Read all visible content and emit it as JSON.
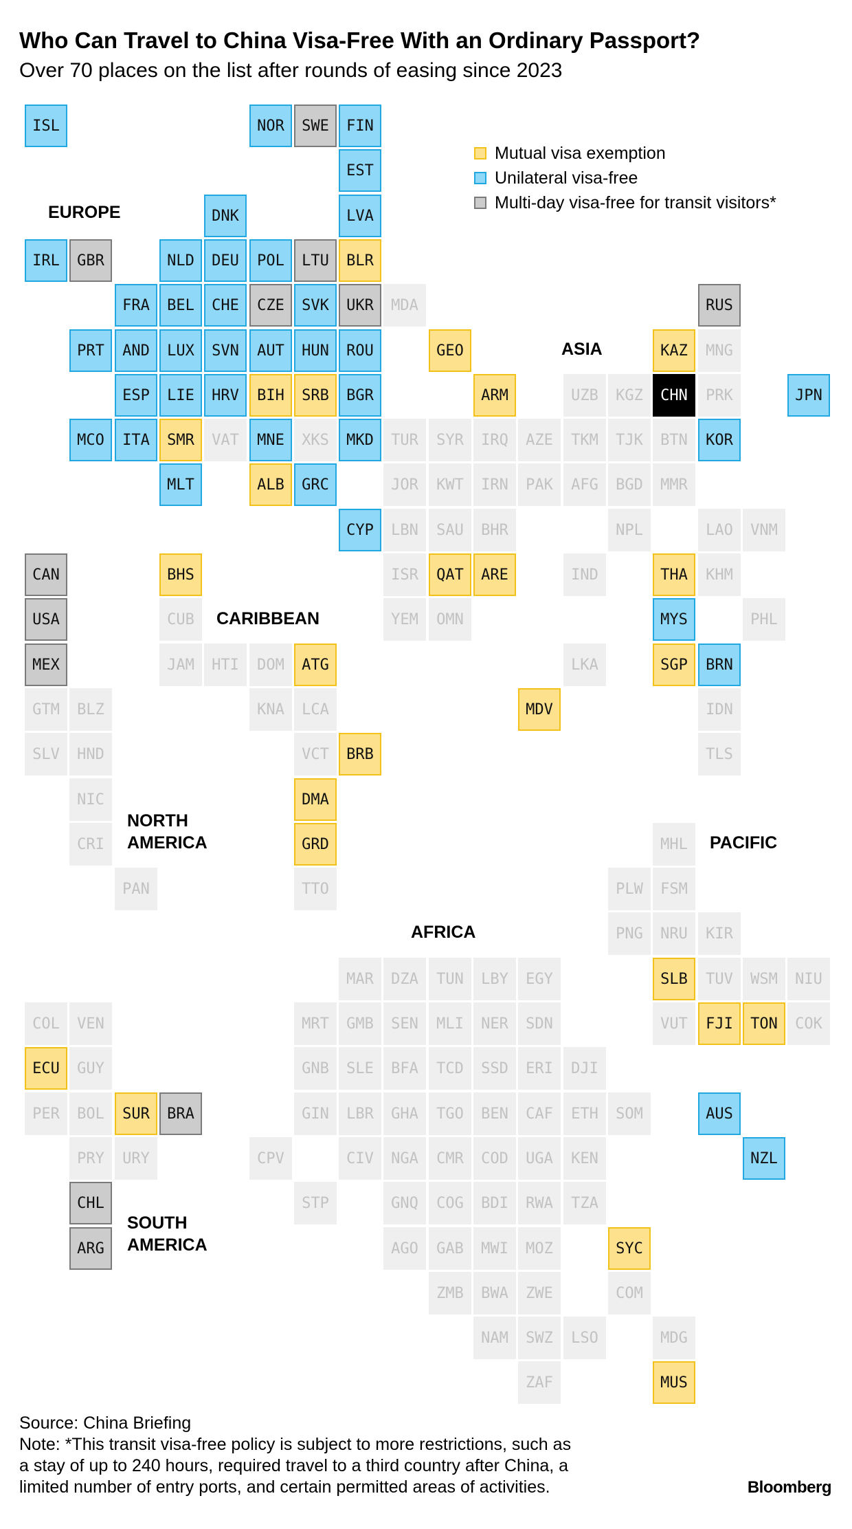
{
  "title": "Who Can Travel to China Visa-Free With an Ordinary Passport?",
  "subtitle": "Over 70 places on the list after rounds of easing since 2023",
  "colors": {
    "mutual": "#fde18d",
    "unilateral": "#8fd8f8",
    "transit": "#cccccc",
    "none": "#efefef",
    "home": "#000000"
  },
  "legend": [
    {
      "status": "mutual",
      "label": "Mutual visa exemption"
    },
    {
      "status": "unilateral",
      "label": "Unilateral visa-free"
    },
    {
      "status": "transit",
      "label": "Multi-day visa-free for transit visitors*"
    }
  ],
  "regions": {
    "europe": "EUROPE",
    "asia": "ASIA",
    "caribbean": "CARIBBEAN",
    "north_america": "NORTH\nAMERICA",
    "pacific": "PACIFIC",
    "africa": "AFRICA",
    "south_america": "SOUTH\nAMERICA"
  },
  "countries": [
    {
      "code": "ISL",
      "col": 0,
      "row": 0,
      "status": "unilateral"
    },
    {
      "code": "NOR",
      "col": 5,
      "row": 0,
      "status": "unilateral"
    },
    {
      "code": "SWE",
      "col": 6,
      "row": 0,
      "status": "transit"
    },
    {
      "code": "FIN",
      "col": 7,
      "row": 0,
      "status": "unilateral"
    },
    {
      "code": "EST",
      "col": 7,
      "row": 1,
      "status": "unilateral"
    },
    {
      "code": "DNK",
      "col": 4,
      "row": 2,
      "status": "unilateral"
    },
    {
      "code": "LVA",
      "col": 7,
      "row": 2,
      "status": "unilateral"
    },
    {
      "code": "IRL",
      "col": 0,
      "row": 3,
      "status": "unilateral"
    },
    {
      "code": "GBR",
      "col": 1,
      "row": 3,
      "status": "transit"
    },
    {
      "code": "NLD",
      "col": 3,
      "row": 3,
      "status": "unilateral"
    },
    {
      "code": "DEU",
      "col": 4,
      "row": 3,
      "status": "unilateral"
    },
    {
      "code": "POL",
      "col": 5,
      "row": 3,
      "status": "unilateral"
    },
    {
      "code": "LTU",
      "col": 6,
      "row": 3,
      "status": "transit"
    },
    {
      "code": "BLR",
      "col": 7,
      "row": 3,
      "status": "mutual"
    },
    {
      "code": "FRA",
      "col": 2,
      "row": 4,
      "status": "unilateral"
    },
    {
      "code": "BEL",
      "col": 3,
      "row": 4,
      "status": "unilateral"
    },
    {
      "code": "CHE",
      "col": 4,
      "row": 4,
      "status": "unilateral"
    },
    {
      "code": "CZE",
      "col": 5,
      "row": 4,
      "status": "transit"
    },
    {
      "code": "SVK",
      "col": 6,
      "row": 4,
      "status": "unilateral"
    },
    {
      "code": "UKR",
      "col": 7,
      "row": 4,
      "status": "transit"
    },
    {
      "code": "MDA",
      "col": 8,
      "row": 4,
      "status": "none"
    },
    {
      "code": "RUS",
      "col": 15,
      "row": 4,
      "status": "transit"
    },
    {
      "code": "PRT",
      "col": 1,
      "row": 5,
      "status": "unilateral"
    },
    {
      "code": "AND",
      "col": 2,
      "row": 5,
      "status": "unilateral"
    },
    {
      "code": "LUX",
      "col": 3,
      "row": 5,
      "status": "unilateral"
    },
    {
      "code": "SVN",
      "col": 4,
      "row": 5,
      "status": "unilateral"
    },
    {
      "code": "AUT",
      "col": 5,
      "row": 5,
      "status": "unilateral"
    },
    {
      "code": "HUN",
      "col": 6,
      "row": 5,
      "status": "unilateral"
    },
    {
      "code": "ROU",
      "col": 7,
      "row": 5,
      "status": "unilateral"
    },
    {
      "code": "GEO",
      "col": 9,
      "row": 5,
      "status": "mutual"
    },
    {
      "code": "KAZ",
      "col": 14,
      "row": 5,
      "status": "mutual"
    },
    {
      "code": "MNG",
      "col": 15,
      "row": 5,
      "status": "none"
    },
    {
      "code": "ESP",
      "col": 2,
      "row": 6,
      "status": "unilateral"
    },
    {
      "code": "LIE",
      "col": 3,
      "row": 6,
      "status": "unilateral"
    },
    {
      "code": "HRV",
      "col": 4,
      "row": 6,
      "status": "unilateral"
    },
    {
      "code": "BIH",
      "col": 5,
      "row": 6,
      "status": "mutual"
    },
    {
      "code": "SRB",
      "col": 6,
      "row": 6,
      "status": "mutual"
    },
    {
      "code": "BGR",
      "col": 7,
      "row": 6,
      "status": "unilateral"
    },
    {
      "code": "ARM",
      "col": 10,
      "row": 6,
      "status": "mutual"
    },
    {
      "code": "UZB",
      "col": 12,
      "row": 6,
      "status": "none"
    },
    {
      "code": "KGZ",
      "col": 13,
      "row": 6,
      "status": "none"
    },
    {
      "code": "CHN",
      "col": 14,
      "row": 6,
      "status": "home"
    },
    {
      "code": "PRK",
      "col": 15,
      "row": 6,
      "status": "none"
    },
    {
      "code": "JPN",
      "col": 17,
      "row": 6,
      "status": "unilateral"
    },
    {
      "code": "MCO",
      "col": 1,
      "row": 7,
      "status": "unilateral"
    },
    {
      "code": "ITA",
      "col": 2,
      "row": 7,
      "status": "unilateral"
    },
    {
      "code": "SMR",
      "col": 3,
      "row": 7,
      "status": "mutual"
    },
    {
      "code": "VAT",
      "col": 4,
      "row": 7,
      "status": "none"
    },
    {
      "code": "MNE",
      "col": 5,
      "row": 7,
      "status": "unilateral"
    },
    {
      "code": "XKS",
      "col": 6,
      "row": 7,
      "status": "none"
    },
    {
      "code": "MKD",
      "col": 7,
      "row": 7,
      "status": "unilateral"
    },
    {
      "code": "TUR",
      "col": 8,
      "row": 7,
      "status": "none"
    },
    {
      "code": "SYR",
      "col": 9,
      "row": 7,
      "status": "none"
    },
    {
      "code": "IRQ",
      "col": 10,
      "row": 7,
      "status": "none"
    },
    {
      "code": "AZE",
      "col": 11,
      "row": 7,
      "status": "none"
    },
    {
      "code": "TKM",
      "col": 12,
      "row": 7,
      "status": "none"
    },
    {
      "code": "TJK",
      "col": 13,
      "row": 7,
      "status": "none"
    },
    {
      "code": "BTN",
      "col": 14,
      "row": 7,
      "status": "none"
    },
    {
      "code": "KOR",
      "col": 15,
      "row": 7,
      "status": "unilateral"
    },
    {
      "code": "MLT",
      "col": 3,
      "row": 8,
      "status": "unilateral"
    },
    {
      "code": "ALB",
      "col": 5,
      "row": 8,
      "status": "mutual"
    },
    {
      "code": "GRC",
      "col": 6,
      "row": 8,
      "status": "unilateral"
    },
    {
      "code": "JOR",
      "col": 8,
      "row": 8,
      "status": "none"
    },
    {
      "code": "KWT",
      "col": 9,
      "row": 8,
      "status": "none"
    },
    {
      "code": "IRN",
      "col": 10,
      "row": 8,
      "status": "none"
    },
    {
      "code": "PAK",
      "col": 11,
      "row": 8,
      "status": "none"
    },
    {
      "code": "AFG",
      "col": 12,
      "row": 8,
      "status": "none"
    },
    {
      "code": "BGD",
      "col": 13,
      "row": 8,
      "status": "none"
    },
    {
      "code": "MMR",
      "col": 14,
      "row": 8,
      "status": "none"
    },
    {
      "code": "CYP",
      "col": 7,
      "row": 9,
      "status": "unilateral"
    },
    {
      "code": "LBN",
      "col": 8,
      "row": 9,
      "status": "none"
    },
    {
      "code": "SAU",
      "col": 9,
      "row": 9,
      "status": "none"
    },
    {
      "code": "BHR",
      "col": 10,
      "row": 9,
      "status": "none"
    },
    {
      "code": "NPL",
      "col": 13,
      "row": 9,
      "status": "none"
    },
    {
      "code": "LAO",
      "col": 15,
      "row": 9,
      "status": "none"
    },
    {
      "code": "VNM",
      "col": 16,
      "row": 9,
      "status": "none"
    },
    {
      "code": "CAN",
      "col": 0,
      "row": 10,
      "status": "transit"
    },
    {
      "code": "BHS",
      "col": 3,
      "row": 10,
      "status": "mutual"
    },
    {
      "code": "ISR",
      "col": 8,
      "row": 10,
      "status": "none"
    },
    {
      "code": "QAT",
      "col": 9,
      "row": 10,
      "status": "mutual"
    },
    {
      "code": "ARE",
      "col": 10,
      "row": 10,
      "status": "mutual"
    },
    {
      "code": "IND",
      "col": 12,
      "row": 10,
      "status": "none"
    },
    {
      "code": "THA",
      "col": 14,
      "row": 10,
      "status": "mutual"
    },
    {
      "code": "KHM",
      "col": 15,
      "row": 10,
      "status": "none"
    },
    {
      "code": "USA",
      "col": 0,
      "row": 11,
      "status": "transit"
    },
    {
      "code": "CUB",
      "col": 3,
      "row": 11,
      "status": "none"
    },
    {
      "code": "YEM",
      "col": 8,
      "row": 11,
      "status": "none"
    },
    {
      "code": "OMN",
      "col": 9,
      "row": 11,
      "status": "none"
    },
    {
      "code": "MYS",
      "col": 14,
      "row": 11,
      "status": "unilateral"
    },
    {
      "code": "PHL",
      "col": 16,
      "row": 11,
      "status": "none"
    },
    {
      "code": "MEX",
      "col": 0,
      "row": 12,
      "status": "transit"
    },
    {
      "code": "JAM",
      "col": 3,
      "row": 12,
      "status": "none"
    },
    {
      "code": "HTI",
      "col": 4,
      "row": 12,
      "status": "none"
    },
    {
      "code": "DOM",
      "col": 5,
      "row": 12,
      "status": "none"
    },
    {
      "code": "ATG",
      "col": 6,
      "row": 12,
      "status": "mutual"
    },
    {
      "code": "LKA",
      "col": 12,
      "row": 12,
      "status": "none"
    },
    {
      "code": "SGP",
      "col": 14,
      "row": 12,
      "status": "mutual"
    },
    {
      "code": "BRN",
      "col": 15,
      "row": 12,
      "status": "unilateral"
    },
    {
      "code": "GTM",
      "col": 0,
      "row": 13,
      "status": "none"
    },
    {
      "code": "BLZ",
      "col": 1,
      "row": 13,
      "status": "none"
    },
    {
      "code": "KNA",
      "col": 5,
      "row": 13,
      "status": "none"
    },
    {
      "code": "LCA",
      "col": 6,
      "row": 13,
      "status": "none"
    },
    {
      "code": "MDV",
      "col": 11,
      "row": 13,
      "status": "mutual"
    },
    {
      "code": "IDN",
      "col": 15,
      "row": 13,
      "status": "none"
    },
    {
      "code": "SLV",
      "col": 0,
      "row": 14,
      "status": "none"
    },
    {
      "code": "HND",
      "col": 1,
      "row": 14,
      "status": "none"
    },
    {
      "code": "VCT",
      "col": 6,
      "row": 14,
      "status": "none"
    },
    {
      "code": "BRB",
      "col": 7,
      "row": 14,
      "status": "mutual"
    },
    {
      "code": "TLS",
      "col": 15,
      "row": 14,
      "status": "none"
    },
    {
      "code": "NIC",
      "col": 1,
      "row": 15,
      "status": "none"
    },
    {
      "code": "DMA",
      "col": 6,
      "row": 15,
      "status": "mutual"
    },
    {
      "code": "CRI",
      "col": 1,
      "row": 16,
      "status": "none"
    },
    {
      "code": "GRD",
      "col": 6,
      "row": 16,
      "status": "mutual"
    },
    {
      "code": "MHL",
      "col": 14,
      "row": 16,
      "status": "none"
    },
    {
      "code": "PAN",
      "col": 2,
      "row": 17,
      "status": "none"
    },
    {
      "code": "TTO",
      "col": 6,
      "row": 17,
      "status": "none"
    },
    {
      "code": "PLW",
      "col": 13,
      "row": 17,
      "status": "none"
    },
    {
      "code": "FSM",
      "col": 14,
      "row": 17,
      "status": "none"
    },
    {
      "code": "PNG",
      "col": 13,
      "row": 18,
      "status": "none"
    },
    {
      "code": "NRU",
      "col": 14,
      "row": 18,
      "status": "none"
    },
    {
      "code": "KIR",
      "col": 15,
      "row": 18,
      "status": "none"
    },
    {
      "code": "MAR",
      "col": 7,
      "row": 19,
      "status": "none"
    },
    {
      "code": "DZA",
      "col": 8,
      "row": 19,
      "status": "none"
    },
    {
      "code": "TUN",
      "col": 9,
      "row": 19,
      "status": "none"
    },
    {
      "code": "LBY",
      "col": 10,
      "row": 19,
      "status": "none"
    },
    {
      "code": "EGY",
      "col": 11,
      "row": 19,
      "status": "none"
    },
    {
      "code": "SLB",
      "col": 14,
      "row": 19,
      "status": "mutual"
    },
    {
      "code": "TUV",
      "col": 15,
      "row": 19,
      "status": "none"
    },
    {
      "code": "WSM",
      "col": 16,
      "row": 19,
      "status": "none"
    },
    {
      "code": "NIU",
      "col": 17,
      "row": 19,
      "status": "none"
    },
    {
      "code": "COL",
      "col": 0,
      "row": 20,
      "status": "none"
    },
    {
      "code": "VEN",
      "col": 1,
      "row": 20,
      "status": "none"
    },
    {
      "code": "MRT",
      "col": 6,
      "row": 20,
      "status": "none"
    },
    {
      "code": "GMB",
      "col": 7,
      "row": 20,
      "status": "none"
    },
    {
      "code": "SEN",
      "col": 8,
      "row": 20,
      "status": "none"
    },
    {
      "code": "MLI",
      "col": 9,
      "row": 20,
      "status": "none"
    },
    {
      "code": "NER",
      "col": 10,
      "row": 20,
      "status": "none"
    },
    {
      "code": "SDN",
      "col": 11,
      "row": 20,
      "status": "none"
    },
    {
      "code": "VUT",
      "col": 14,
      "row": 20,
      "status": "none"
    },
    {
      "code": "FJI",
      "col": 15,
      "row": 20,
      "status": "mutual"
    },
    {
      "code": "TON",
      "col": 16,
      "row": 20,
      "status": "mutual"
    },
    {
      "code": "COK",
      "col": 17,
      "row": 20,
      "status": "none"
    },
    {
      "code": "ECU",
      "col": 0,
      "row": 21,
      "status": "mutual"
    },
    {
      "code": "GUY",
      "col": 1,
      "row": 21,
      "status": "none"
    },
    {
      "code": "GNB",
      "col": 6,
      "row": 21,
      "status": "none"
    },
    {
      "code": "SLE",
      "col": 7,
      "row": 21,
      "status": "none"
    },
    {
      "code": "BFA",
      "col": 8,
      "row": 21,
      "status": "none"
    },
    {
      "code": "TCD",
      "col": 9,
      "row": 21,
      "status": "none"
    },
    {
      "code": "SSD",
      "col": 10,
      "row": 21,
      "status": "none"
    },
    {
      "code": "ERI",
      "col": 11,
      "row": 21,
      "status": "none"
    },
    {
      "code": "DJI",
      "col": 12,
      "row": 21,
      "status": "none"
    },
    {
      "code": "PER",
      "col": 0,
      "row": 22,
      "status": "none"
    },
    {
      "code": "BOL",
      "col": 1,
      "row": 22,
      "status": "none"
    },
    {
      "code": "SUR",
      "col": 2,
      "row": 22,
      "status": "mutual"
    },
    {
      "code": "BRA",
      "col": 3,
      "row": 22,
      "status": "transit"
    },
    {
      "code": "GIN",
      "col": 6,
      "row": 22,
      "status": "none"
    },
    {
      "code": "LBR",
      "col": 7,
      "row": 22,
      "status": "none"
    },
    {
      "code": "GHA",
      "col": 8,
      "row": 22,
      "status": "none"
    },
    {
      "code": "TGO",
      "col": 9,
      "row": 22,
      "status": "none"
    },
    {
      "code": "BEN",
      "col": 10,
      "row": 22,
      "status": "none"
    },
    {
      "code": "CAF",
      "col": 11,
      "row": 22,
      "status": "none"
    },
    {
      "code": "ETH",
      "col": 12,
      "row": 22,
      "status": "none"
    },
    {
      "code": "SOM",
      "col": 13,
      "row": 22,
      "status": "none"
    },
    {
      "code": "AUS",
      "col": 15,
      "row": 22,
      "status": "unilateral"
    },
    {
      "code": "PRY",
      "col": 1,
      "row": 23,
      "status": "none"
    },
    {
      "code": "URY",
      "col": 2,
      "row": 23,
      "status": "none"
    },
    {
      "code": "CPV",
      "col": 5,
      "row": 23,
      "status": "none"
    },
    {
      "code": "CIV",
      "col": 7,
      "row": 23,
      "status": "none"
    },
    {
      "code": "NGA",
      "col": 8,
      "row": 23,
      "status": "none"
    },
    {
      "code": "CMR",
      "col": 9,
      "row": 23,
      "status": "none"
    },
    {
      "code": "COD",
      "col": 10,
      "row": 23,
      "status": "none"
    },
    {
      "code": "UGA",
      "col": 11,
      "row": 23,
      "status": "none"
    },
    {
      "code": "KEN",
      "col": 12,
      "row": 23,
      "status": "none"
    },
    {
      "code": "NZL",
      "col": 16,
      "row": 23,
      "status": "unilateral"
    },
    {
      "code": "CHL",
      "col": 1,
      "row": 24,
      "status": "transit"
    },
    {
      "code": "STP",
      "col": 6,
      "row": 24,
      "status": "none"
    },
    {
      "code": "GNQ",
      "col": 8,
      "row": 24,
      "status": "none"
    },
    {
      "code": "COG",
      "col": 9,
      "row": 24,
      "status": "none"
    },
    {
      "code": "BDI",
      "col": 10,
      "row": 24,
      "status": "none"
    },
    {
      "code": "RWA",
      "col": 11,
      "row": 24,
      "status": "none"
    },
    {
      "code": "TZA",
      "col": 12,
      "row": 24,
      "status": "none"
    },
    {
      "code": "ARG",
      "col": 1,
      "row": 25,
      "status": "transit"
    },
    {
      "code": "AGO",
      "col": 8,
      "row": 25,
      "status": "none"
    },
    {
      "code": "GAB",
      "col": 9,
      "row": 25,
      "status": "none"
    },
    {
      "code": "MWI",
      "col": 10,
      "row": 25,
      "status": "none"
    },
    {
      "code": "MOZ",
      "col": 11,
      "row": 25,
      "status": "none"
    },
    {
      "code": "SYC",
      "col": 13,
      "row": 25,
      "status": "mutual"
    },
    {
      "code": "ZMB",
      "col": 9,
      "row": 26,
      "status": "none"
    },
    {
      "code": "BWA",
      "col": 10,
      "row": 26,
      "status": "none"
    },
    {
      "code": "ZWE",
      "col": 11,
      "row": 26,
      "status": "none"
    },
    {
      "code": "COM",
      "col": 13,
      "row": 26,
      "status": "none"
    },
    {
      "code": "NAM",
      "col": 10,
      "row": 27,
      "status": "none"
    },
    {
      "code": "SWZ",
      "col": 11,
      "row": 27,
      "status": "none"
    },
    {
      "code": "LSO",
      "col": 12,
      "row": 27,
      "status": "none"
    },
    {
      "code": "MDG",
      "col": 14,
      "row": 27,
      "status": "none"
    },
    {
      "code": "ZAF",
      "col": 11,
      "row": 28,
      "status": "none"
    },
    {
      "code": "MUS",
      "col": 14,
      "row": 28,
      "status": "mutual"
    }
  ],
  "footer": {
    "source": "Source: China Briefing",
    "note_lines": [
      "Note: *This transit visa-free policy is subject to more restrictions, such as",
      "a stay of up to 240 hours, required travel to a third country after China, a",
      "limited number of entry ports, and certain permitted areas of activities."
    ],
    "brand": "Bloomberg"
  }
}
